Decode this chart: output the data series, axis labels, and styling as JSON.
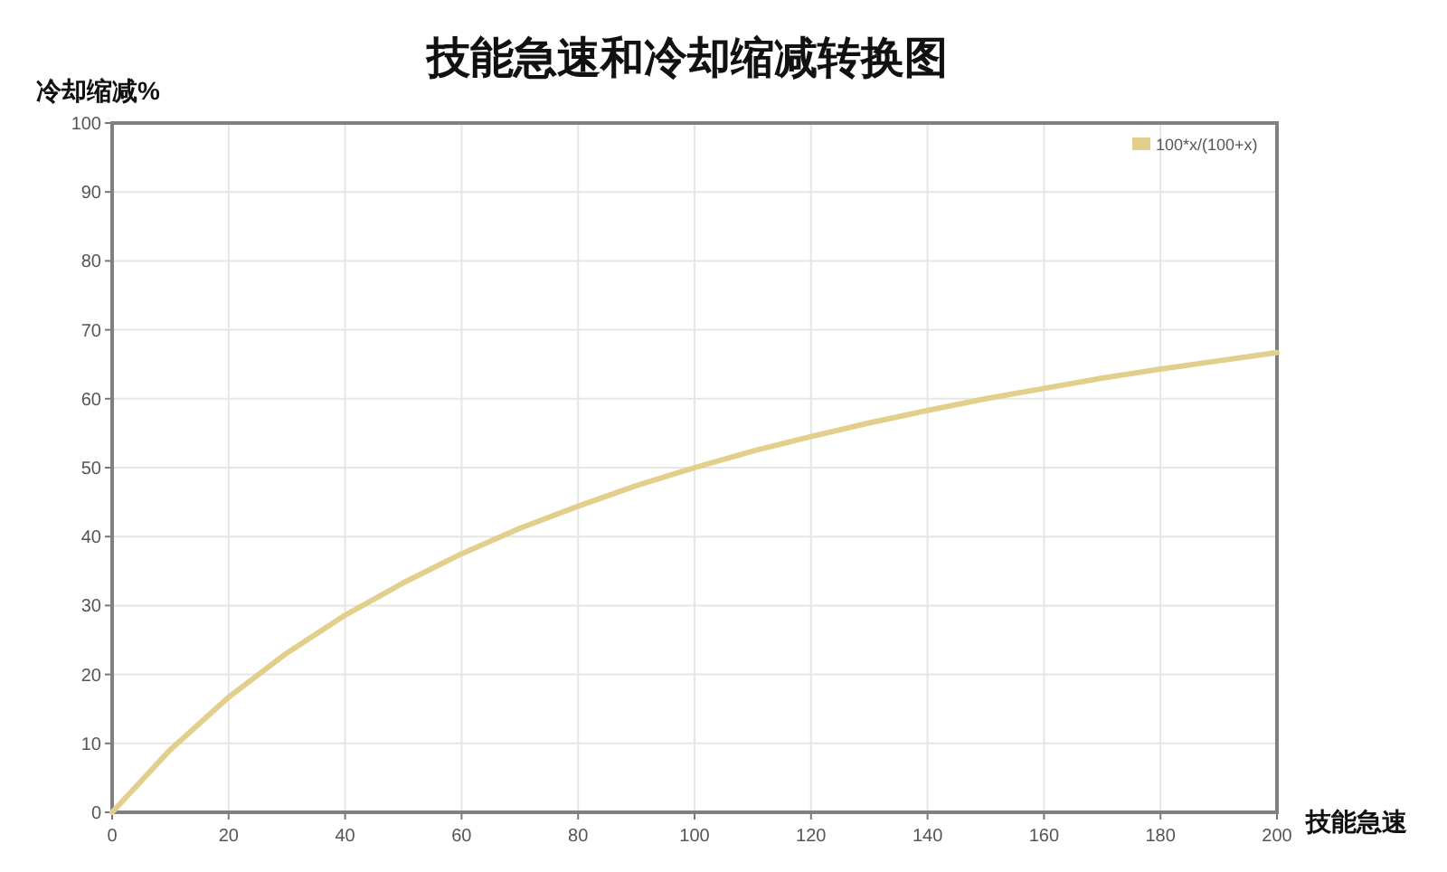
{
  "chart_data": {
    "type": "line",
    "title": "技能急速和冷却缩减转换图",
    "xlabel": "技能急速",
    "ylabel": "冷却缩减%",
    "x": [
      0,
      10,
      20,
      30,
      40,
      50,
      60,
      70,
      80,
      90,
      100,
      110,
      120,
      130,
      140,
      150,
      160,
      170,
      180,
      190,
      200
    ],
    "series": [
      {
        "name": "100*x/(100+x)",
        "color": "#e3cf8c",
        "values": [
          0,
          9.1,
          16.7,
          23.1,
          28.6,
          33.3,
          37.5,
          41.2,
          44.4,
          47.4,
          50,
          52.4,
          54.5,
          56.5,
          58.3,
          60,
          61.5,
          63,
          64.3,
          65.5,
          66.7
        ]
      }
    ],
    "xlim": [
      0,
      200
    ],
    "xticks": [
      0,
      20,
      40,
      60,
      80,
      100,
      120,
      140,
      160,
      180,
      200
    ],
    "ylim": [
      0,
      100
    ],
    "yticks": [
      0,
      10,
      20,
      30,
      40,
      50,
      60,
      70,
      80,
      90,
      100
    ],
    "grid": true,
    "legend": "top right",
    "marker": "none",
    "line_style": "solid"
  }
}
